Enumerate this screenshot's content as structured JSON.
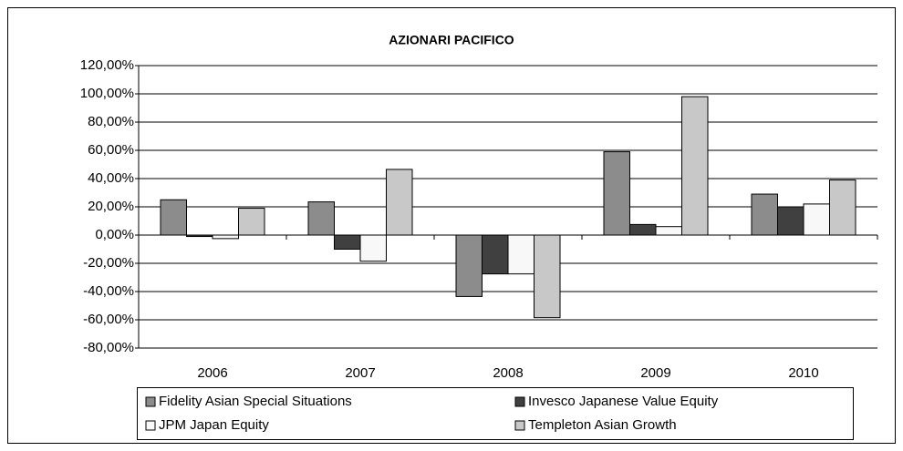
{
  "chart_data": {
    "type": "bar",
    "title": "AZIONARI PACIFICO",
    "categories": [
      "2006",
      "2007",
      "2008",
      "2009",
      "2010"
    ],
    "series": [
      {
        "name": "Fidelity Asian Special Situations",
        "color": "#8c8c8c",
        "values": [
          25,
          23.5,
          -43.5,
          59,
          29
        ]
      },
      {
        "name": "Invesco Japanese Value Equity",
        "color": "#404040",
        "values": [
          -1,
          -10,
          -27.5,
          7.5,
          20
        ]
      },
      {
        "name": "JPM Japan Equity",
        "color": "#f8f8f8",
        "values": [
          -2.5,
          -18.5,
          -27.5,
          6,
          22
        ]
      },
      {
        "name": "Templeton Asian Growth",
        "color": "#c8c8c8",
        "values": [
          19,
          46.5,
          -58.5,
          98,
          39
        ]
      }
    ],
    "ylim": [
      -80,
      120
    ],
    "yticks": [
      {
        "value": -80,
        "label": "-80,00%"
      },
      {
        "value": -60,
        "label": "-60,00%"
      },
      {
        "value": -40,
        "label": "-40,00%"
      },
      {
        "value": -20,
        "label": "-20,00%"
      },
      {
        "value": 0,
        "label": "0,00%"
      },
      {
        "value": 20,
        "label": "20,00%"
      },
      {
        "value": 40,
        "label": "40,00%"
      },
      {
        "value": 60,
        "label": "60,00%"
      },
      {
        "value": 80,
        "label": "80,00%"
      },
      {
        "value": 100,
        "label": "100,00%"
      },
      {
        "value": 120,
        "label": "120,00%"
      }
    ],
    "grid": true,
    "legend": "bottom"
  }
}
